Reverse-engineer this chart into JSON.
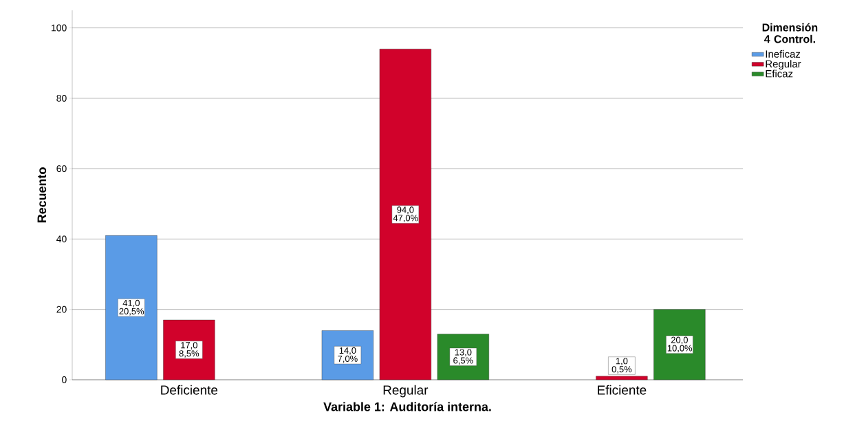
{
  "chart_data": {
    "type": "bar",
    "xlabel": "Variable 1: Auditoría interna.",
    "ylabel": "Recuento",
    "legend_title": "Dimensión 4 Control.",
    "categories": [
      "Deficiente",
      "Regular",
      "Eficiente"
    ],
    "series": [
      {
        "name": "Ineficaz",
        "color": "#5a9be6",
        "values": [
          41,
          14,
          null
        ],
        "value_labels": [
          "41,0 20,5%",
          "14,0 7,0%",
          null
        ]
      },
      {
        "name": "Regular",
        "color": "#d1022b",
        "values": [
          17,
          94,
          1
        ],
        "value_labels": [
          "17,0 8,5%",
          "94,0 47,0%",
          "1,0 0,5%"
        ]
      },
      {
        "name": "Eficaz",
        "color": "#2a8a2a",
        "values": [
          null,
          13,
          20
        ],
        "value_labels": [
          null,
          "13,0 6,5%",
          "20,0 10,0%"
        ]
      }
    ],
    "ylim": [
      0,
      105
    ],
    "yticks": [
      0,
      20,
      40,
      60,
      80,
      100
    ],
    "grid": "y",
    "legend": "top right"
  }
}
